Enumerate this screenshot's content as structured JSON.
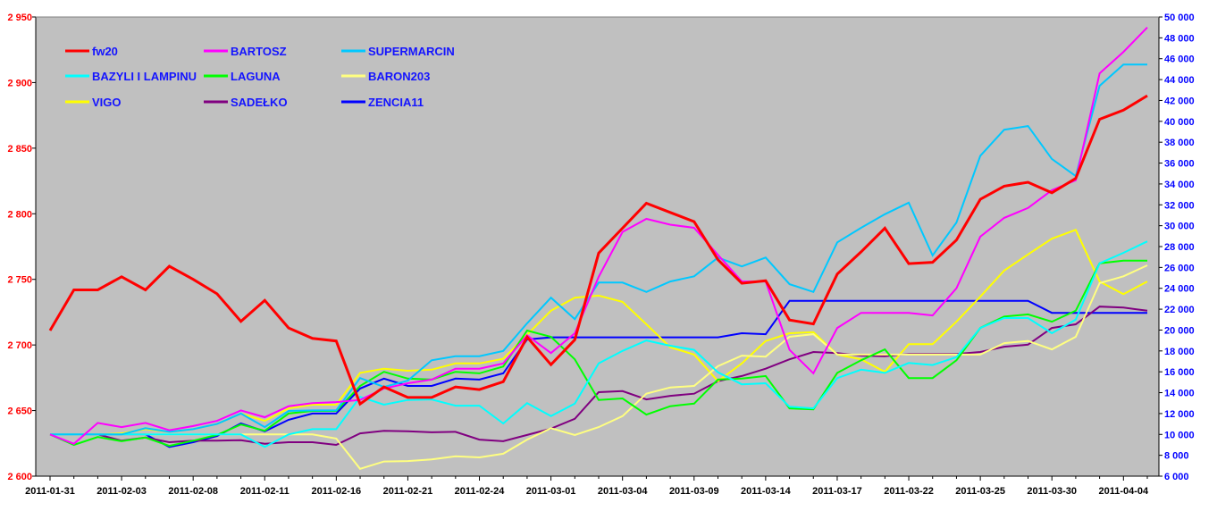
{
  "chart_data": {
    "type": "line",
    "title": "",
    "xlabel": "",
    "ylabel_left": "",
    "ylabel_right": "",
    "x_tick_labels": [
      "2011-01-31",
      "2011-02-03",
      "2011-02-08",
      "2011-02-11",
      "2011-02-16",
      "2011-02-21",
      "2011-02-24",
      "2011-03-01",
      "2011-03-04",
      "2011-03-09",
      "2011-03-14",
      "2011-03-17",
      "2011-03-22",
      "2011-03-25",
      "2011-03-30",
      "2011-04-04"
    ],
    "x_tick_every": 3,
    "n_points": 47,
    "y_left": {
      "min": 2600,
      "max": 2950,
      "step": 50,
      "color": "#ff0000",
      "labels": [
        "2 600",
        "2 650",
        "2 700",
        "2 750",
        "2 800",
        "2 850",
        "2 900",
        "2 950"
      ]
    },
    "y_right": {
      "min": 6000,
      "max": 50000,
      "step": 2000,
      "color": "#0000ff",
      "labels": [
        "6 000",
        "8 000",
        "10 000",
        "12 000",
        "14 000",
        "16 000",
        "18 000",
        "20 000",
        "22 000",
        "24 000",
        "26 000",
        "28 000",
        "30 000",
        "32 000",
        "34 000",
        "36 000",
        "38 000",
        "40 000",
        "42 000",
        "44 000",
        "46 000",
        "48 000",
        "50 000"
      ]
    },
    "grid": false,
    "legend_position": "top-left",
    "background": "#c0c0c0",
    "series": [
      {
        "name": "fw20",
        "axis": "left",
        "color": "#ff0000",
        "width": 3,
        "values": [
          2711,
          2742,
          2742,
          2752,
          2742,
          2760,
          2750,
          2739,
          2718,
          2734,
          2713,
          2705,
          2703,
          2655,
          2668,
          2660,
          2660,
          2668,
          2666,
          2672,
          2706,
          2685,
          2704,
          2770,
          2789,
          2808,
          2801,
          2794,
          2765,
          2747,
          2749,
          2719,
          2716,
          2754,
          2771,
          2789,
          2762,
          2763,
          2780,
          2811,
          2821,
          2824,
          2816,
          2827,
          2872,
          2879,
          2890
        ]
      },
      {
        "name": "BARTOSZ",
        "axis": "right",
        "color": "#ff00ff",
        "width": 2,
        "values": [
          10000,
          9100,
          11100,
          10700,
          11100,
          10400,
          10800,
          11300,
          12300,
          11650,
          12700,
          13000,
          13100,
          13300,
          14400,
          14900,
          15250,
          16300,
          16300,
          16800,
          19500,
          17800,
          19700,
          25100,
          29400,
          30650,
          30100,
          29800,
          27200,
          24650,
          24650,
          18100,
          15850,
          20200,
          21650,
          21650,
          21650,
          21400,
          24000,
          28950,
          30750,
          31700,
          33400,
          34350,
          44600,
          46650,
          49000
        ]
      },
      {
        "name": "SUPERMARCIN",
        "axis": "right",
        "color": "#00c8ff",
        "width": 2,
        "values": [
          10000,
          10000,
          10000,
          10000,
          10600,
          10250,
          10500,
          11000,
          12000,
          10700,
          12250,
          12300,
          12300,
          15400,
          14550,
          15150,
          17100,
          17500,
          17500,
          18000,
          20650,
          23100,
          21050,
          24550,
          24550,
          23650,
          24650,
          25150,
          26950,
          26100,
          26950,
          24400,
          23650,
          28400,
          29800,
          31100,
          32200,
          27150,
          30300,
          36700,
          39200,
          39550,
          36400,
          34750,
          43400,
          45450,
          45450
        ]
      },
      {
        "name": "BAZYLI I LAMPINU",
        "axis": "right",
        "color": "#00ffff",
        "width": 2,
        "values": [
          10000,
          10000,
          10000,
          10000,
          10000,
          10000,
          10000,
          10000,
          10000,
          8800,
          10000,
          10500,
          10500,
          13600,
          12850,
          13300,
          13350,
          12750,
          12750,
          11050,
          13000,
          11750,
          12950,
          16800,
          18000,
          19000,
          18500,
          18100,
          15950,
          14800,
          14900,
          12650,
          12500,
          15400,
          16200,
          15900,
          16850,
          16650,
          17400,
          20200,
          21150,
          21150,
          19700,
          21000,
          26400,
          27400,
          28500
        ]
      },
      {
        "name": "LAGUNA",
        "axis": "right",
        "color": "#00ff00",
        "width": 2,
        "values": [
          10000,
          9000,
          9750,
          9350,
          9700,
          8900,
          9400,
          9950,
          10950,
          10350,
          12000,
          12250,
          12250,
          14650,
          16000,
          15350,
          15250,
          16000,
          15850,
          16500,
          19950,
          19350,
          17200,
          13300,
          13450,
          11900,
          12700,
          12950,
          15250,
          15350,
          15600,
          12500,
          12400,
          15900,
          17100,
          18150,
          15400,
          15400,
          17100,
          20200,
          21300,
          21500,
          20800,
          21850,
          26400,
          26650,
          26650
        ]
      },
      {
        "name": "BARON203",
        "axis": "right",
        "color": "#ffff80",
        "width": 2,
        "values": [
          10000,
          10000,
          10000,
          10000,
          10000,
          10000,
          10000,
          10000,
          10000,
          10000,
          10000,
          10000,
          9600,
          6700,
          7400,
          7450,
          7600,
          7900,
          7800,
          8150,
          9500,
          10600,
          9950,
          10700,
          11750,
          13900,
          14500,
          14650,
          16550,
          17550,
          17450,
          19350,
          19600,
          17650,
          17650,
          17650,
          17650,
          17650,
          17650,
          17650,
          18750,
          18950,
          18150,
          19350,
          24500,
          25150,
          26200
        ]
      },
      {
        "name": "VIGO",
        "axis": "right",
        "color": "#ffff00",
        "width": 2,
        "values": [
          10000,
          10000,
          10000,
          10100,
          10500,
          10250,
          10500,
          11000,
          12000,
          11300,
          12500,
          12850,
          12850,
          15900,
          16300,
          16100,
          16200,
          16800,
          16800,
          17250,
          19550,
          21850,
          23100,
          23300,
          22700,
          20550,
          18350,
          17650,
          15100,
          16800,
          18950,
          19700,
          19800,
          17650,
          17200,
          16000,
          18650,
          18650,
          20800,
          23200,
          25700,
          27250,
          28750,
          29600,
          24650,
          23450,
          24650
        ]
      },
      {
        "name": "SADEŁKO",
        "axis": "right",
        "color": "#800080",
        "width": 2,
        "values": [
          10000,
          10000,
          10000,
          9400,
          9700,
          9250,
          9400,
          9400,
          9450,
          9100,
          9250,
          9250,
          9000,
          10100,
          10350,
          10300,
          10200,
          10250,
          9500,
          9350,
          9950,
          10550,
          11500,
          14050,
          14150,
          13350,
          13700,
          13900,
          15100,
          15600,
          16300,
          17200,
          17900,
          17800,
          17550,
          17500,
          17700,
          17700,
          17700,
          17900,
          18400,
          18600,
          20200,
          20550,
          22250,
          22150,
          21850
        ]
      },
      {
        "name": "ZENCIA11",
        "axis": "right",
        "color": "#0000ff",
        "width": 2,
        "values": [
          10000,
          10000,
          10000,
          10000,
          10000,
          8800,
          9250,
          9850,
          11050,
          10300,
          11400,
          12000,
          12000,
          14400,
          15350,
          14650,
          14650,
          15350,
          15250,
          15850,
          19100,
          19300,
          19300,
          19300,
          19300,
          19300,
          19300,
          19300,
          19300,
          19700,
          19600,
          22800,
          22800,
          22800,
          22800,
          22800,
          22800,
          22800,
          22800,
          22800,
          22800,
          22800,
          21650,
          21650,
          21650,
          21650,
          21650
        ]
      }
    ]
  }
}
